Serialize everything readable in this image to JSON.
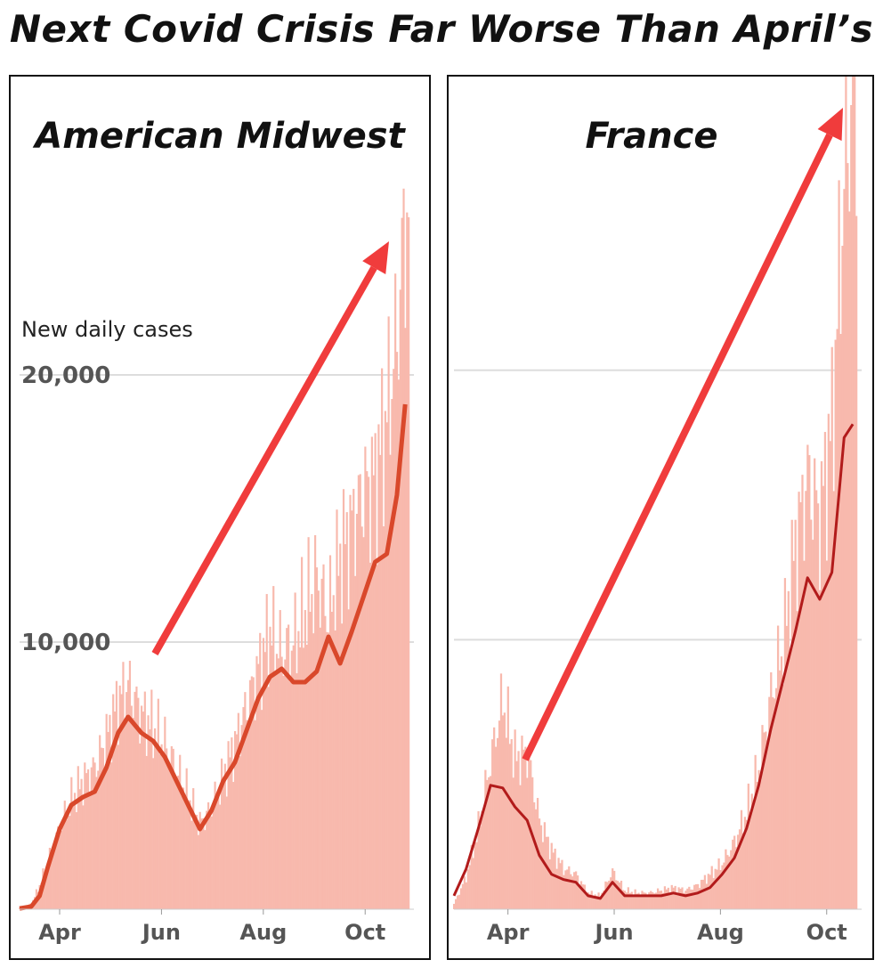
{
  "title": "Next Covid Crisis Far Worse Than April’s",
  "colors": {
    "bar": "#f8b9ad",
    "midwest_line": "#d9482b",
    "france_line": "#b21b1b",
    "arrow": "#f03c3c",
    "grid": "#dddddd"
  },
  "chart_data": [
    {
      "type": "bar",
      "title": "American Midwest",
      "ylabel": "New daily cases",
      "yticks": [
        {
          "value": 10000,
          "label": "10,000"
        },
        {
          "value": 20000,
          "label": "20,000"
        }
      ],
      "ylim": [
        0,
        26000
      ],
      "xticks": [
        "Apr",
        "Jun",
        "Aug",
        "Oct"
      ],
      "x_start": "2020-03-08",
      "x_end": "2020-10-27",
      "tick_dates": [
        "2020-04-01",
        "2020-06-01",
        "2020-08-01",
        "2020-10-01"
      ],
      "series": [
        {
          "kind": "daily_bars",
          "points": [
            [
              "2020-03-08",
              50
            ],
            [
              "2020-03-15",
              200
            ],
            [
              "2020-03-20",
              900
            ],
            [
              "2020-03-25",
              1800
            ],
            [
              "2020-04-01",
              3000
            ],
            [
              "2020-04-08",
              4100
            ],
            [
              "2020-04-15",
              4800
            ],
            [
              "2020-04-22",
              5300
            ],
            [
              "2020-04-29",
              6400
            ],
            [
              "2020-05-06",
              7800
            ],
            [
              "2020-05-12",
              8400
            ],
            [
              "2020-05-20",
              7300
            ],
            [
              "2020-05-27",
              6800
            ],
            [
              "2020-06-03",
              6200
            ],
            [
              "2020-06-10",
              5200
            ],
            [
              "2020-06-17",
              4200
            ],
            [
              "2020-06-24",
              3200
            ],
            [
              "2020-07-01",
              3800
            ],
            [
              "2020-07-08",
              5000
            ],
            [
              "2020-07-15",
              6200
            ],
            [
              "2020-07-22",
              7600
            ],
            [
              "2020-07-29",
              9000
            ],
            [
              "2020-08-05",
              10400
            ],
            [
              "2020-08-12",
              9600
            ],
            [
              "2020-08-19",
              9900
            ],
            [
              "2020-08-26",
              11200
            ],
            [
              "2020-09-02",
              12400
            ],
            [
              "2020-09-09",
              11000
            ],
            [
              "2020-09-16",
              13200
            ],
            [
              "2020-09-23",
              14400
            ],
            [
              "2020-09-30",
              15600
            ],
            [
              "2020-10-07",
              16100
            ],
            [
              "2020-10-14",
              18500
            ],
            [
              "2020-10-20",
              21400
            ],
            [
              "2020-10-25",
              25800
            ]
          ]
        },
        {
          "kind": "7-day average",
          "points": [
            [
              "2020-03-08",
              30
            ],
            [
              "2020-03-15",
              100
            ],
            [
              "2020-03-20",
              500
            ],
            [
              "2020-03-25",
              1600
            ],
            [
              "2020-04-01",
              3000
            ],
            [
              "2020-04-08",
              3900
            ],
            [
              "2020-04-15",
              4200
            ],
            [
              "2020-04-22",
              4400
            ],
            [
              "2020-04-29",
              5300
            ],
            [
              "2020-05-06",
              6600
            ],
            [
              "2020-05-12",
              7200
            ],
            [
              "2020-05-20",
              6600
            ],
            [
              "2020-05-27",
              6300
            ],
            [
              "2020-06-03",
              5700
            ],
            [
              "2020-06-10",
              4800
            ],
            [
              "2020-06-17",
              3900
            ],
            [
              "2020-06-24",
              3000
            ],
            [
              "2020-07-01",
              3700
            ],
            [
              "2020-07-08",
              4800
            ],
            [
              "2020-07-15",
              5500
            ],
            [
              "2020-07-22",
              6700
            ],
            [
              "2020-07-29",
              7900
            ],
            [
              "2020-08-05",
              8700
            ],
            [
              "2020-08-12",
              9000
            ],
            [
              "2020-08-19",
              8500
            ],
            [
              "2020-08-26",
              8500
            ],
            [
              "2020-09-02",
              8900
            ],
            [
              "2020-09-09",
              10200
            ],
            [
              "2020-09-16",
              9200
            ],
            [
              "2020-09-23",
              10400
            ],
            [
              "2020-09-30",
              11700
            ],
            [
              "2020-10-07",
              13000
            ],
            [
              "2020-10-14",
              13300
            ],
            [
              "2020-10-20",
              15500
            ],
            [
              "2020-10-25",
              18900
            ]
          ]
        }
      ],
      "annotation": "upward-arrow"
    },
    {
      "type": "bar",
      "title": "France",
      "ylim": [
        0,
        30500
      ],
      "gridlines": [
        10000,
        20000
      ],
      "xticks": [
        "Apr",
        "Jun",
        "Aug",
        "Oct"
      ],
      "x_start": "2020-03-01",
      "x_end": "2020-10-18",
      "tick_dates": [
        "2020-04-01",
        "2020-06-01",
        "2020-08-01",
        "2020-10-01"
      ],
      "series": [
        {
          "kind": "daily_bars",
          "points": [
            [
              "2020-03-01",
              200
            ],
            [
              "2020-03-08",
              1200
            ],
            [
              "2020-03-15",
              3000
            ],
            [
              "2020-03-22",
              5500
            ],
            [
              "2020-03-29",
              7800
            ],
            [
              "2020-04-05",
              5600
            ],
            [
              "2020-04-12",
              5800
            ],
            [
              "2020-04-19",
              3300
            ],
            [
              "2020-04-26",
              2200
            ],
            [
              "2020-05-03",
              1500
            ],
            [
              "2020-05-10",
              1300
            ],
            [
              "2020-05-17",
              600
            ],
            [
              "2020-05-24",
              500
            ],
            [
              "2020-05-31",
              1400
            ],
            [
              "2020-06-07",
              700
            ],
            [
              "2020-06-14",
              600
            ],
            [
              "2020-06-21",
              600
            ],
            [
              "2020-06-28",
              700
            ],
            [
              "2020-07-05",
              800
            ],
            [
              "2020-07-12",
              700
            ],
            [
              "2020-07-19",
              900
            ],
            [
              "2020-07-26",
              1300
            ],
            [
              "2020-08-02",
              1700
            ],
            [
              "2020-08-09",
              2500
            ],
            [
              "2020-08-16",
              3600
            ],
            [
              "2020-08-23",
              5200
            ],
            [
              "2020-08-30",
              7900
            ],
            [
              "2020-09-06",
              9800
            ],
            [
              "2020-09-13",
              13500
            ],
            [
              "2020-09-20",
              16000
            ],
            [
              "2020-09-27",
              14500
            ],
            [
              "2020-10-04",
              18000
            ],
            [
              "2020-10-11",
              27000
            ],
            [
              "2020-10-16",
              30500
            ]
          ]
        },
        {
          "kind": "7-day average",
          "points": [
            [
              "2020-03-01",
              500
            ],
            [
              "2020-03-08",
              1500
            ],
            [
              "2020-03-15",
              3000
            ],
            [
              "2020-03-22",
              4600
            ],
            [
              "2020-03-29",
              4500
            ],
            [
              "2020-04-05",
              3800
            ],
            [
              "2020-04-12",
              3300
            ],
            [
              "2020-04-19",
              2000
            ],
            [
              "2020-04-26",
              1300
            ],
            [
              "2020-05-03",
              1100
            ],
            [
              "2020-05-10",
              1000
            ],
            [
              "2020-05-17",
              500
            ],
            [
              "2020-05-24",
              400
            ],
            [
              "2020-05-31",
              1000
            ],
            [
              "2020-06-07",
              500
            ],
            [
              "2020-06-14",
              500
            ],
            [
              "2020-06-21",
              500
            ],
            [
              "2020-06-28",
              500
            ],
            [
              "2020-07-05",
              600
            ],
            [
              "2020-07-12",
              500
            ],
            [
              "2020-07-19",
              600
            ],
            [
              "2020-07-26",
              800
            ],
            [
              "2020-08-02",
              1300
            ],
            [
              "2020-08-09",
              1900
            ],
            [
              "2020-08-16",
              3000
            ],
            [
              "2020-08-23",
              4600
            ],
            [
              "2020-08-30",
              6700
            ],
            [
              "2020-09-06",
              8500
            ],
            [
              "2020-09-13",
              10300
            ],
            [
              "2020-09-20",
              12300
            ],
            [
              "2020-09-27",
              11500
            ],
            [
              "2020-10-04",
              12500
            ],
            [
              "2020-10-11",
              17500
            ],
            [
              "2020-10-16",
              18000
            ]
          ]
        }
      ],
      "annotation": "upward-arrow"
    }
  ]
}
